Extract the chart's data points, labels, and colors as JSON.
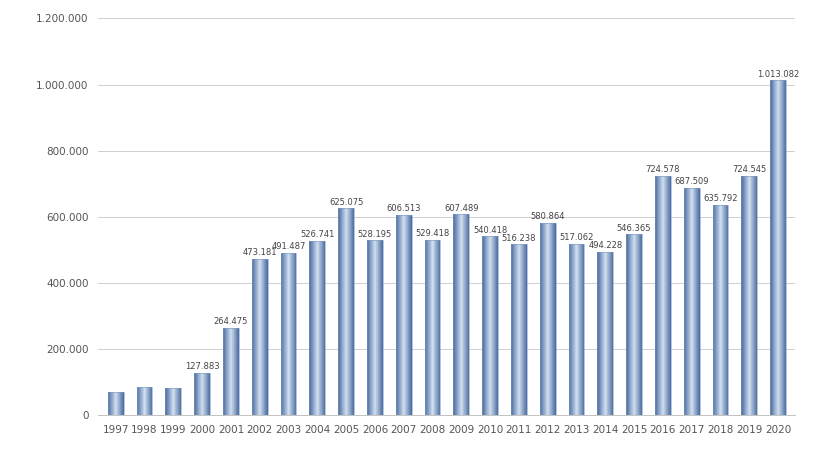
{
  "years": [
    1997,
    1998,
    1999,
    2000,
    2001,
    2002,
    2003,
    2004,
    2005,
    2006,
    2007,
    2008,
    2009,
    2010,
    2011,
    2012,
    2013,
    2014,
    2015,
    2016,
    2017,
    2018,
    2019,
    2020
  ],
  "values": [
    68000,
    85000,
    82000,
    127883,
    264475,
    473181,
    491487,
    526741,
    625075,
    528195,
    606513,
    529418,
    607489,
    540418,
    516238,
    580864,
    517062,
    494228,
    546365,
    724578,
    687509,
    635792,
    724545,
    1013082
  ],
  "labels": [
    "",
    "",
    "",
    "127.883",
    "264.475",
    "473.181",
    "491.487",
    "526.741",
    "625.075",
    "528.195",
    "606.513",
    "529.418",
    "607.489",
    "540.418",
    "516.238",
    "580.864",
    "517.062",
    "494.228",
    "546.365",
    "724.578",
    "687.509",
    "635.792",
    "724.545",
    "1.013.082"
  ],
  "ylim": [
    0,
    1200000
  ],
  "yticks": [
    0,
    200000,
    400000,
    600000,
    800000,
    1000000,
    1200000
  ],
  "ytick_labels": [
    "0",
    "200.000",
    "400.000",
    "600.000",
    "800.000",
    "1.000.000",
    "1.200.000"
  ],
  "bar_color_dark": "#4a6b9e",
  "bar_color_light": "#d0dff0",
  "background_color": "#ffffff",
  "grid_color": "#c8c8c8",
  "label_fontsize": 6.0,
  "tick_fontsize": 7.5,
  "bar_width": 0.55
}
